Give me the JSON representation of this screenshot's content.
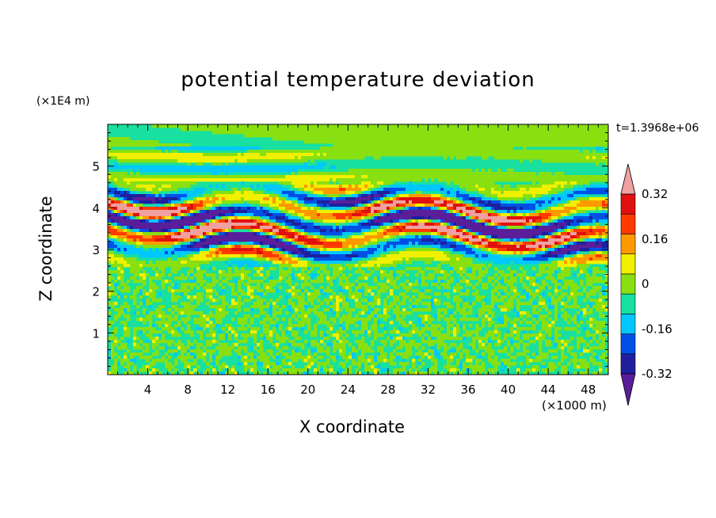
{
  "chart_data": {
    "type": "heatmap",
    "title": "potential temperature deviation",
    "xlabel": "X coordinate",
    "ylabel": "Z coordinate",
    "x_unit": "(×1000 m)",
    "y_unit": "(×1E4 m)",
    "time_label": "t=1.3968e+06",
    "xlim": [
      0,
      50
    ],
    "ylim": [
      0,
      6
    ],
    "x_ticks": [
      "4",
      "8",
      "12",
      "16",
      "20",
      "24",
      "28",
      "32",
      "36",
      "40",
      "44",
      "48"
    ],
    "x_tick_values": [
      4,
      8,
      12,
      16,
      20,
      24,
      28,
      32,
      36,
      40,
      44,
      48
    ],
    "y_ticks": [
      "1",
      "2",
      "3",
      "4",
      "5"
    ],
    "y_tick_values": [
      1,
      2,
      3,
      4,
      5
    ],
    "colorbar": {
      "levels": [
        -0.4,
        -0.32,
        -0.24,
        -0.16,
        -0.08,
        0,
        0.08,
        0.16,
        0.24,
        0.32,
        0.4
      ],
      "tick_labels": [
        "0.32",
        "0.16",
        "0",
        "-0.16",
        "-0.32"
      ],
      "tick_values": [
        0.32,
        0.16,
        0,
        -0.16,
        -0.32
      ],
      "colors_low_to_high": [
        "#5a1e9a",
        "#1f1f9e",
        "#0050e6",
        "#00c8ff",
        "#18e0a0",
        "#88e010",
        "#f0f000",
        "#ff9900",
        "#ff3a00",
        "#e01010",
        "#f0a0a0"
      ]
    },
    "regions": [
      {
        "z_range": [
          0,
          2.6
        ],
        "description": "Small-scale noise, values between -0.08 and 0.08"
      },
      {
        "z_range": [
          2.6,
          4.6
        ],
        "description": "Strong alternating bands, values from below -0.32 to above 0.32"
      },
      {
        "z_range": [
          4.6,
          6
        ],
        "description": "Weaker horizontal layers, values mostly -0.16 to 0.16"
      }
    ]
  }
}
